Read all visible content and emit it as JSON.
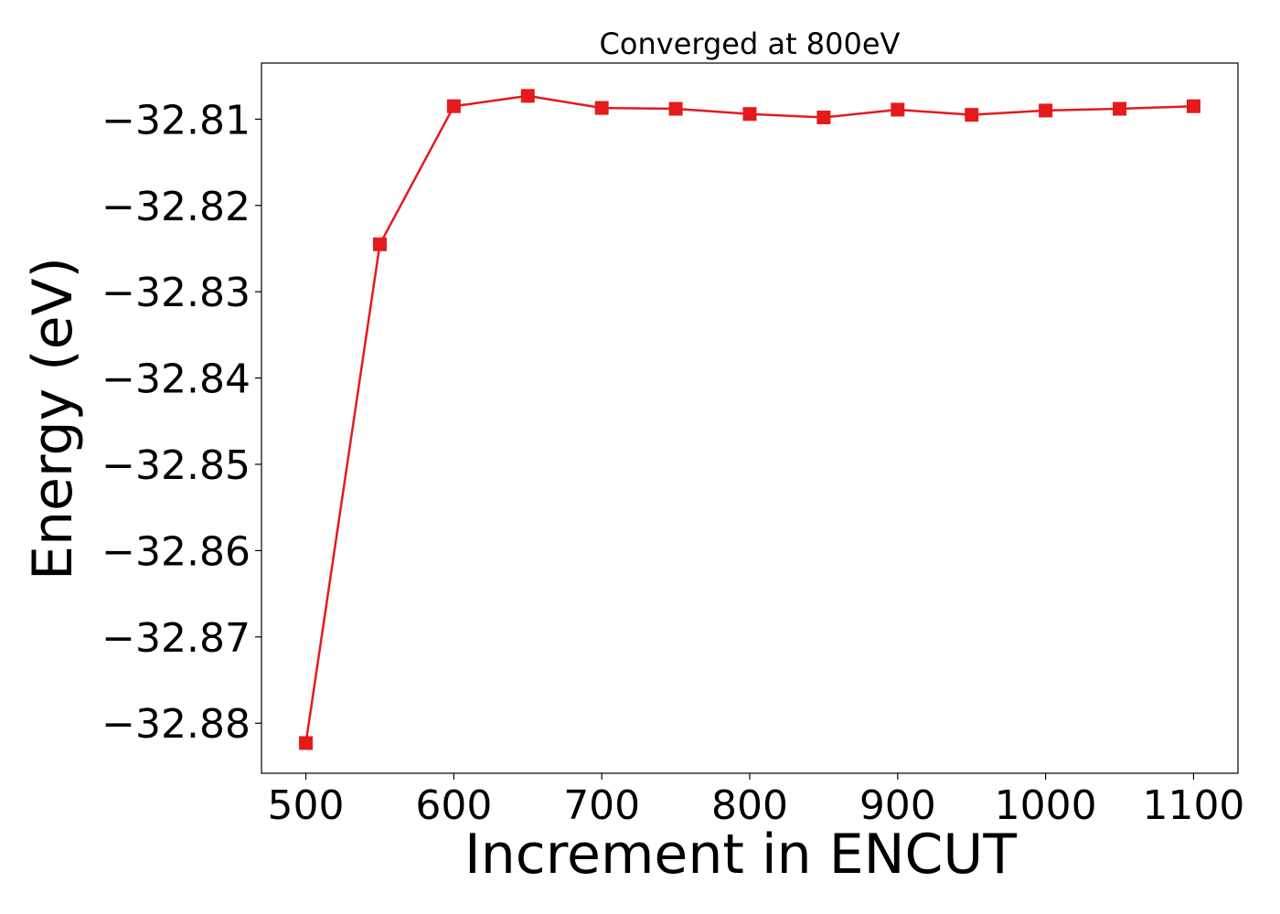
{
  "chart_data": {
    "type": "line",
    "title": "Converged at 800eV",
    "xlabel": "Increment in ENCUT",
    "ylabel": "Energy (eV)",
    "xlim": [
      470,
      1130
    ],
    "ylim": [
      -32.8858,
      -32.8035
    ],
    "x_ticks": [
      500,
      600,
      700,
      800,
      900,
      1000,
      1100
    ],
    "x_tick_labels": [
      "500",
      "600",
      "700",
      "800",
      "900",
      "1000",
      "1100"
    ],
    "y_ticks": [
      -32.81,
      -32.82,
      -32.83,
      -32.84,
      -32.85,
      -32.86,
      -32.87,
      -32.88
    ],
    "y_tick_labels": [
      "−32.81",
      "−32.82",
      "−32.83",
      "−32.84",
      "−32.85",
      "−32.86",
      "−32.87",
      "−32.88"
    ],
    "grid": false,
    "series": [
      {
        "color": "#e41a1c",
        "marker": "square",
        "x": [
          500,
          550,
          600,
          650,
          700,
          750,
          800,
          850,
          900,
          950,
          1000,
          1050,
          1100
        ],
        "y": [
          -32.8823,
          -32.8245,
          -32.8085,
          -32.8073,
          -32.8087,
          -32.8088,
          -32.8094,
          -32.8098,
          -32.8089,
          -32.8095,
          -32.809,
          -32.8088,
          -32.8085
        ]
      }
    ]
  }
}
